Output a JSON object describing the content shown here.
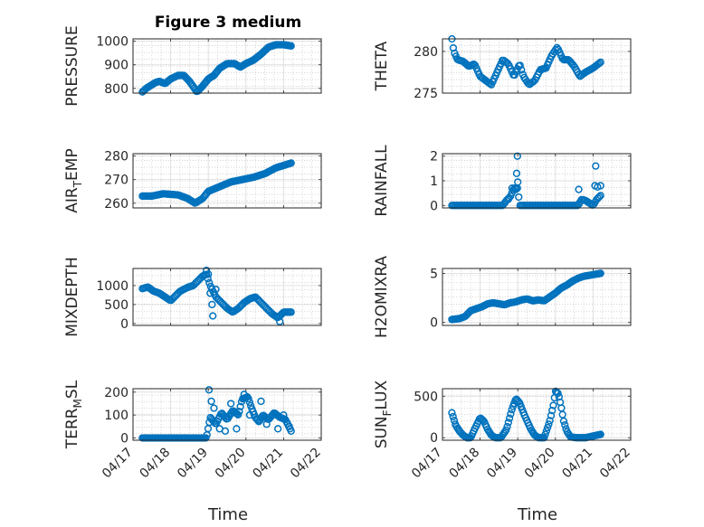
{
  "figure_title": "Figure 3 medium",
  "x_axis_label": "Time",
  "marker_color": "#0072BD",
  "chart_data": [
    {
      "id": "pressure",
      "type": "scatter",
      "ylabel": "PRESSURE",
      "xlim": [
        0,
        5
      ],
      "ylim": [
        780,
        1010
      ],
      "yticks": [
        800,
        900,
        1000
      ],
      "xticks": [
        0,
        1,
        2,
        3,
        4,
        5
      ],
      "xticklabels": [],
      "grid": true,
      "keypoints": [
        [
          0.25,
          785
        ],
        [
          0.35,
          800
        ],
        [
          0.5,
          815
        ],
        [
          0.6,
          825
        ],
        [
          0.7,
          830
        ],
        [
          0.85,
          820
        ],
        [
          1.0,
          840
        ],
        [
          1.2,
          855
        ],
        [
          1.35,
          855
        ],
        [
          1.5,
          830
        ],
        [
          1.7,
          785
        ],
        [
          1.85,
          810
        ],
        [
          2.0,
          840
        ],
        [
          2.15,
          855
        ],
        [
          2.3,
          885
        ],
        [
          2.5,
          905
        ],
        [
          2.7,
          905
        ],
        [
          2.85,
          890
        ],
        [
          3.0,
          905
        ],
        [
          3.2,
          920
        ],
        [
          3.4,
          945
        ],
        [
          3.6,
          975
        ],
        [
          3.8,
          985
        ],
        [
          4.0,
          985
        ],
        [
          4.2,
          980
        ]
      ],
      "points": 130
    },
    {
      "id": "theta",
      "type": "scatter",
      "ylabel": "THETA",
      "xlim": [
        0,
        5
      ],
      "ylim": [
        275,
        281.5
      ],
      "yticks": [
        275,
        280
      ],
      "xticks": [
        0,
        1,
        2,
        3,
        4,
        5
      ],
      "xticklabels": [],
      "grid": true,
      "keypoints": [
        [
          0.25,
          281.5
        ],
        [
          0.3,
          280
        ],
        [
          0.4,
          279
        ],
        [
          0.55,
          278.8
        ],
        [
          0.7,
          278.2
        ],
        [
          0.85,
          278.5
        ],
        [
          1.0,
          277
        ],
        [
          1.15,
          276.5
        ],
        [
          1.3,
          276
        ],
        [
          1.45,
          277.5
        ],
        [
          1.6,
          279
        ],
        [
          1.75,
          278.5
        ],
        [
          1.9,
          277
        ],
        [
          2.05,
          278.5
        ],
        [
          2.15,
          277
        ],
        [
          2.3,
          276
        ],
        [
          2.45,
          276.5
        ],
        [
          2.6,
          277.8
        ],
        [
          2.75,
          278
        ],
        [
          2.9,
          279.5
        ],
        [
          3.05,
          280.5
        ],
        [
          3.2,
          279
        ],
        [
          3.35,
          279
        ],
        [
          3.5,
          278.2
        ],
        [
          3.65,
          277
        ],
        [
          3.8,
          277.5
        ],
        [
          4.0,
          278
        ],
        [
          4.2,
          278.7
        ]
      ],
      "points": 110
    },
    {
      "id": "air_temp",
      "type": "scatter",
      "ylabel": "AIR_TEMP",
      "xlim": [
        0,
        5
      ],
      "ylim": [
        258,
        281
      ],
      "yticks": [
        260,
        270,
        280
      ],
      "xticks": [
        0,
        1,
        2,
        3,
        4,
        5
      ],
      "xticklabels": [],
      "grid": true,
      "keypoints": [
        [
          0.25,
          263
        ],
        [
          0.5,
          263
        ],
        [
          0.8,
          264
        ],
        [
          1.2,
          263.5
        ],
        [
          1.45,
          262
        ],
        [
          1.65,
          260
        ],
        [
          1.85,
          262
        ],
        [
          2.0,
          265
        ],
        [
          2.3,
          267
        ],
        [
          2.6,
          269
        ],
        [
          2.9,
          270
        ],
        [
          3.2,
          271
        ],
        [
          3.5,
          272.5
        ],
        [
          3.8,
          275
        ],
        [
          4.2,
          277
        ]
      ],
      "points": 120
    },
    {
      "id": "rainfall",
      "type": "scatter",
      "ylabel": "RAINFALL",
      "xlim": [
        0,
        5
      ],
      "ylim": [
        -0.1,
        2.1
      ],
      "yticks": [
        0,
        1,
        2
      ],
      "xticks": [
        0,
        1,
        2,
        3,
        4,
        5
      ],
      "xticklabels": [],
      "grid": true,
      "keypoints": [
        [
          0.25,
          0
        ],
        [
          1.6,
          0
        ],
        [
          1.7,
          0.2
        ],
        [
          1.8,
          0.35
        ],
        [
          1.9,
          0.7
        ],
        [
          2.0,
          0.7
        ],
        [
          2.05,
          0
        ],
        [
          3.6,
          0
        ],
        [
          3.7,
          0.25
        ],
        [
          3.8,
          0.2
        ],
        [
          3.9,
          0.1
        ],
        [
          4.0,
          0
        ],
        [
          4.1,
          0.25
        ],
        [
          4.2,
          0.4
        ]
      ],
      "points": 110,
      "extra_points": [
        [
          1.75,
          0.25
        ],
        [
          1.85,
          0.7
        ],
        [
          1.95,
          0.65
        ],
        [
          1.97,
          1.3
        ],
        [
          1.99,
          2.0
        ],
        [
          2.0,
          0.95
        ],
        [
          3.62,
          0.65
        ],
        [
          4.05,
          0.8
        ],
        [
          4.07,
          1.6
        ],
        [
          4.12,
          0.75
        ],
        [
          4.2,
          0.8
        ]
      ]
    },
    {
      "id": "mixdepth",
      "type": "scatter",
      "ylabel": "MIXDEPTH",
      "xlim": [
        0,
        5
      ],
      "ylim": [
        -50,
        1450
      ],
      "yticks": [
        0,
        500,
        1000
      ],
      "xticks": [
        0,
        1,
        2,
        3,
        4,
        5
      ],
      "xticklabels": [],
      "grid": true,
      "keypoints": [
        [
          0.25,
          920
        ],
        [
          0.4,
          960
        ],
        [
          0.55,
          850
        ],
        [
          0.7,
          800
        ],
        [
          0.85,
          700
        ],
        [
          1.0,
          600
        ],
        [
          1.1,
          700
        ],
        [
          1.25,
          850
        ],
        [
          1.45,
          950
        ],
        [
          1.6,
          1000
        ],
        [
          1.75,
          1150
        ],
        [
          1.85,
          1250
        ],
        [
          1.95,
          1300
        ],
        [
          2.05,
          1000
        ],
        [
          2.2,
          700
        ],
        [
          2.35,
          550
        ],
        [
          2.5,
          400
        ],
        [
          2.65,
          300
        ],
        [
          2.8,
          400
        ],
        [
          2.95,
          550
        ],
        [
          3.1,
          650
        ],
        [
          3.25,
          700
        ],
        [
          3.4,
          550
        ],
        [
          3.55,
          400
        ],
        [
          3.7,
          250
        ],
        [
          3.85,
          150
        ],
        [
          4.0,
          300
        ],
        [
          4.2,
          300
        ]
      ],
      "points": 110,
      "extra_points": [
        [
          1.95,
          1400
        ],
        [
          2.0,
          1300
        ],
        [
          2.05,
          800
        ],
        [
          2.1,
          500
        ],
        [
          2.12,
          200
        ],
        [
          2.2,
          900
        ],
        [
          3.9,
          50
        ]
      ]
    },
    {
      "id": "h2omixra",
      "type": "scatter",
      "ylabel": "H2OMIXRA",
      "xlim": [
        0,
        5
      ],
      "ylim": [
        -0.3,
        5.5
      ],
      "yticks": [
        0,
        5
      ],
      "xticks": [
        0,
        1,
        2,
        3,
        4,
        5
      ],
      "xticklabels": [],
      "grid": true,
      "keypoints": [
        [
          0.25,
          0.3
        ],
        [
          0.45,
          0.4
        ],
        [
          0.6,
          0.6
        ],
        [
          0.75,
          1.2
        ],
        [
          0.9,
          1.4
        ],
        [
          1.05,
          1.6
        ],
        [
          1.2,
          1.9
        ],
        [
          1.35,
          2.0
        ],
        [
          1.5,
          1.9
        ],
        [
          1.65,
          1.8
        ],
        [
          1.8,
          2.0
        ],
        [
          1.95,
          2.1
        ],
        [
          2.1,
          2.3
        ],
        [
          2.25,
          2.4
        ],
        [
          2.4,
          2.2
        ],
        [
          2.55,
          2.3
        ],
        [
          2.7,
          2.2
        ],
        [
          2.85,
          2.6
        ],
        [
          3.0,
          3.0
        ],
        [
          3.15,
          3.5
        ],
        [
          3.3,
          3.8
        ],
        [
          3.45,
          4.2
        ],
        [
          3.6,
          4.5
        ],
        [
          3.75,
          4.7
        ],
        [
          3.9,
          4.8
        ],
        [
          4.05,
          4.9
        ],
        [
          4.2,
          5.0
        ]
      ],
      "points": 120
    },
    {
      "id": "terr_msl",
      "type": "scatter",
      "ylabel": "TERR_MSL",
      "xlim": [
        0,
        5
      ],
      "ylim": [
        -10,
        215
      ],
      "yticks": [
        0,
        100,
        200
      ],
      "xticks": [
        0,
        1,
        2,
        3,
        4,
        5
      ],
      "xticklabels": [
        "04/17",
        "04/18",
        "04/19",
        "04/20",
        "04/21",
        "04/22"
      ],
      "grid": true,
      "keypoints": [
        [
          0.25,
          0
        ],
        [
          1.95,
          0
        ],
        [
          2.05,
          90
        ],
        [
          2.2,
          60
        ],
        [
          2.35,
          110
        ],
        [
          2.5,
          80
        ],
        [
          2.65,
          120
        ],
        [
          2.8,
          100
        ],
        [
          2.9,
          170
        ],
        [
          3.05,
          180
        ],
        [
          3.15,
          130
        ],
        [
          3.25,
          90
        ],
        [
          3.35,
          70
        ],
        [
          3.45,
          100
        ],
        [
          3.6,
          80
        ],
        [
          3.75,
          110
        ],
        [
          3.9,
          90
        ],
        [
          4.05,
          80
        ],
        [
          4.2,
          30
        ]
      ],
      "points": 130,
      "extra_points": [
        [
          2.02,
          210
        ],
        [
          2.08,
          160
        ],
        [
          2.15,
          130
        ],
        [
          2.3,
          40
        ],
        [
          2.45,
          30
        ],
        [
          2.6,
          150
        ],
        [
          2.75,
          40
        ],
        [
          2.95,
          190
        ],
        [
          3.1,
          100
        ],
        [
          3.4,
          160
        ],
        [
          3.55,
          60
        ],
        [
          3.85,
          40
        ],
        [
          4.0,
          100
        ],
        [
          4.15,
          50
        ]
      ]
    },
    {
      "id": "sun_flux",
      "type": "scatter",
      "ylabel": "SUN_FLUX",
      "xlim": [
        0,
        5
      ],
      "ylim": [
        -30,
        590
      ],
      "yticks": [
        0,
        500
      ],
      "xticks": [
        0,
        1,
        2,
        3,
        4,
        5
      ],
      "xticklabels": [
        "04/17",
        "04/18",
        "04/19",
        "04/20",
        "04/21",
        "04/22"
      ],
      "grid": true,
      "keypoints": [
        [
          0.25,
          300
        ],
        [
          0.35,
          150
        ],
        [
          0.45,
          80
        ],
        [
          0.55,
          30
        ],
        [
          0.65,
          0
        ],
        [
          0.75,
          0
        ],
        [
          0.85,
          100
        ],
        [
          1.0,
          240
        ],
        [
          1.1,
          200
        ],
        [
          1.2,
          100
        ],
        [
          1.3,
          30
        ],
        [
          1.4,
          0
        ],
        [
          1.55,
          0
        ],
        [
          1.7,
          100
        ],
        [
          1.85,
          350
        ],
        [
          1.95,
          470
        ],
        [
          2.05,
          420
        ],
        [
          2.15,
          300
        ],
        [
          2.25,
          200
        ],
        [
          2.35,
          100
        ],
        [
          2.45,
          30
        ],
        [
          2.55,
          0
        ],
        [
          2.7,
          0
        ],
        [
          2.85,
          200
        ],
        [
          2.95,
          400
        ],
        [
          3.0,
          560
        ],
        [
          3.08,
          530
        ],
        [
          3.15,
          380
        ],
        [
          3.22,
          200
        ],
        [
          3.3,
          80
        ],
        [
          3.4,
          10
        ],
        [
          3.55,
          0
        ],
        [
          3.8,
          0
        ],
        [
          4.0,
          20
        ],
        [
          4.2,
          40
        ]
      ],
      "points": 130
    }
  ]
}
